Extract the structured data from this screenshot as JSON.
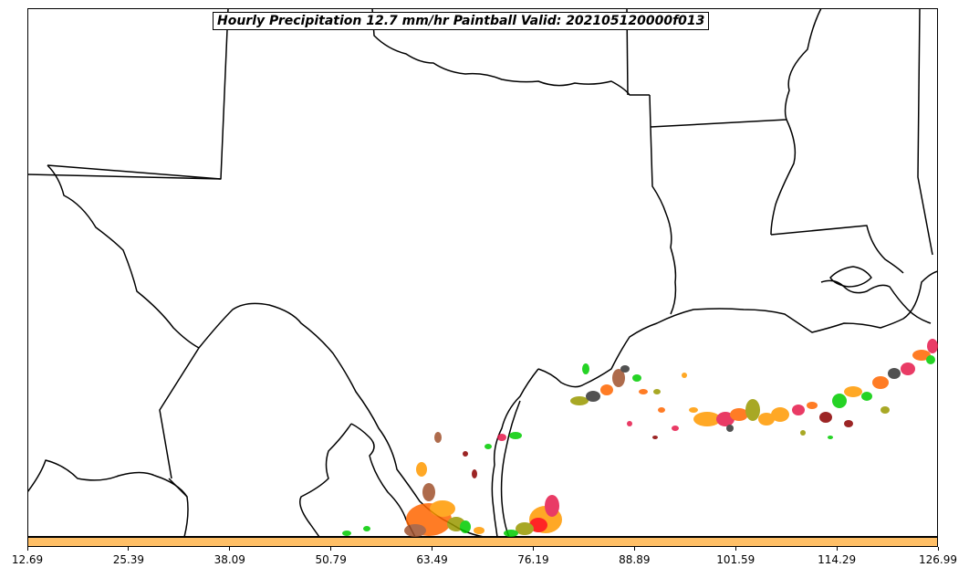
{
  "title": "Hourly Precipitation 12.7 mm/hr Paintball Valid: 202105120000f013",
  "colorbar": {
    "color": "#ffbf66",
    "tick_labels": [
      "12.69",
      "25.39",
      "38.09",
      "50.79",
      "63.49",
      "76.19",
      "88.89",
      "101.59",
      "114.29",
      "126.99"
    ]
  },
  "member_colors": [
    "#ff6600",
    "#ff9900",
    "#e6194b",
    "#8b0000",
    "#a0522d",
    "#00cc00",
    "#999900",
    "#333333"
  ]
}
